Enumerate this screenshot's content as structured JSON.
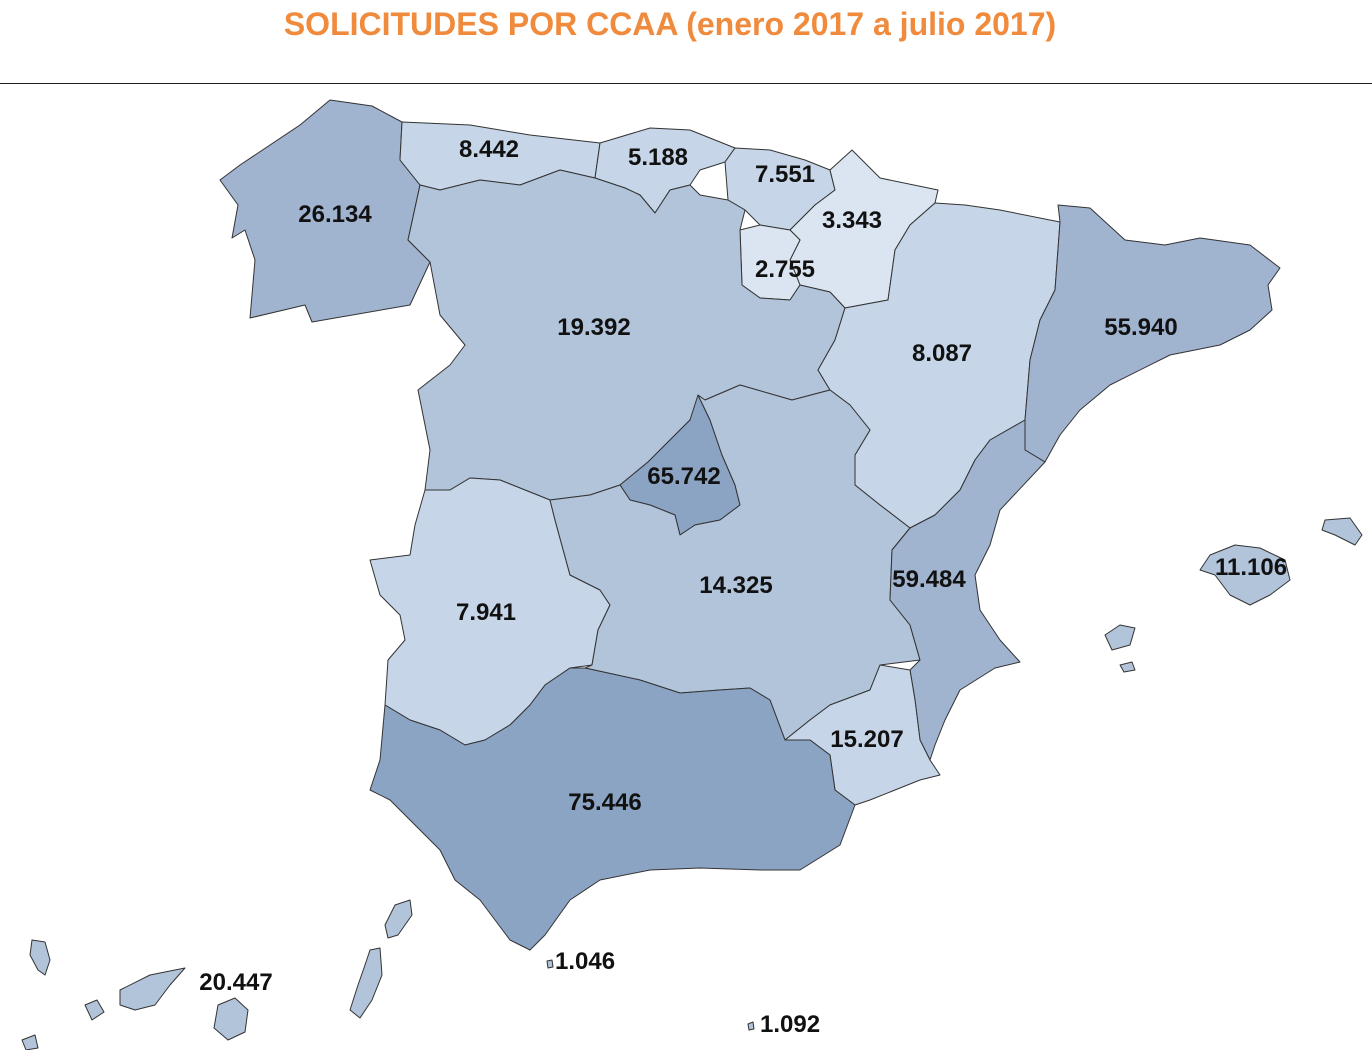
{
  "title": "SOLICITUDES POR CCAA (enero 2017 a julio 2017)",
  "colors": {
    "title": "#f08a3c",
    "level_1": "#dbe5f1",
    "level_2": "#c6d6e8",
    "level_3": "#b2c4da",
    "level_4": "#a0b3cf",
    "level_5": "#8ca4c4",
    "border": "#333333"
  },
  "regions": {
    "galicia": "26.134",
    "asturias": "8.442",
    "cantabria": "5.188",
    "pais_vasco": "7.551",
    "navarra": "3.343",
    "la_rioja": "2.755",
    "castilla_leon": "19.392",
    "aragon": "8.087",
    "cataluna": "55.940",
    "madrid": "65.742",
    "extremadura": "7.941",
    "castilla_la_mancha": "14.325",
    "valencia": "59.484",
    "baleares": "11.106",
    "murcia": "15.207",
    "andalucia": "75.446",
    "canarias": "20.447",
    "ceuta": "1.046",
    "melilla": "1.092"
  }
}
